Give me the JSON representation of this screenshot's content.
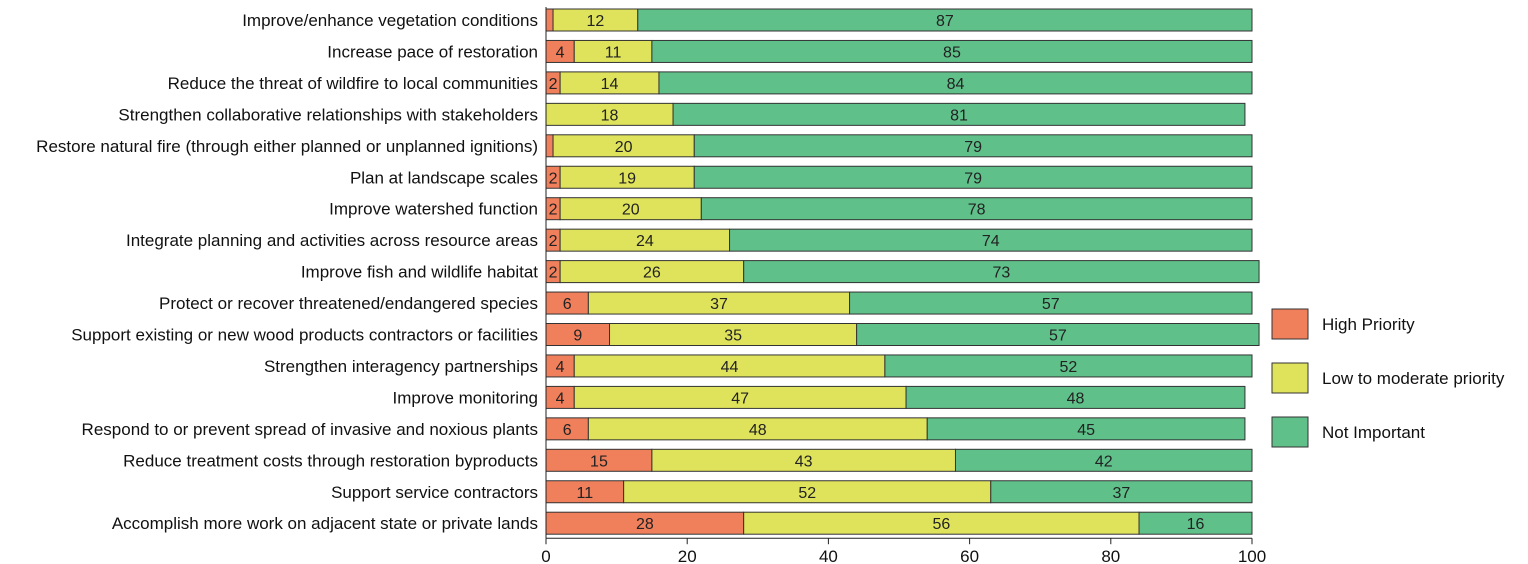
{
  "chart_data": {
    "type": "bar",
    "orientation": "horizontal",
    "stacked": true,
    "categories": [
      "Improve/enhance vegetation conditions",
      "Increase pace of restoration",
      "Reduce the threat of wildfire to local communities",
      "Strengthen collaborative relationships with stakeholders",
      "Restore natural fire (through either planned or unplanned ignitions)",
      "Plan at landscape scales",
      "Improve watershed function",
      "Integrate planning and activities across resource areas",
      "Improve fish and wildlife habitat",
      "Protect or recover threatened/endangered species",
      "Support existing or new wood products contractors or facilities",
      "Strengthen interagency partnerships",
      "Improve monitoring",
      "Respond to or prevent spread of invasive and noxious plants",
      "Reduce treatment costs through restoration byproducts",
      "Support service contractors",
      "Accomplish more work on adjacent state or private lands"
    ],
    "series": [
      {
        "name": "High Priority",
        "color": "#f07f5c",
        "values": [
          1,
          4,
          2,
          0,
          1,
          2,
          2,
          2,
          2,
          6,
          9,
          4,
          4,
          6,
          15,
          11,
          28
        ],
        "labels": [
          "",
          "4",
          "2",
          "",
          "",
          "2",
          "2",
          "2",
          "2",
          "6",
          "9",
          "4",
          "4",
          "6",
          "15",
          "11",
          "28"
        ]
      },
      {
        "name": "Low to moderate priority",
        "color": "#dfe35b",
        "values": [
          12,
          11,
          14,
          18,
          20,
          19,
          20,
          24,
          26,
          37,
          35,
          44,
          47,
          48,
          43,
          52,
          56
        ],
        "labels": [
          "12",
          "11",
          "14",
          "18",
          "20",
          "19",
          "20",
          "24",
          "26",
          "37",
          "35",
          "44",
          "47",
          "48",
          "43",
          "52",
          "56"
        ]
      },
      {
        "name": "Not Important",
        "color": "#5fc08a",
        "values": [
          87,
          85,
          84,
          81,
          79,
          79,
          78,
          74,
          73,
          57,
          57,
          52,
          48,
          45,
          42,
          37,
          16
        ],
        "labels": [
          "87",
          "85",
          "84",
          "81",
          "79",
          "79",
          "78",
          "74",
          "73",
          "57",
          "57",
          "52",
          "48",
          "45",
          "42",
          "37",
          "16"
        ]
      }
    ],
    "xlim": [
      0,
      100
    ],
    "xticks": [
      "0",
      "20",
      "40",
      "60",
      "80",
      "100"
    ],
    "title": "",
    "xlabel": "",
    "ylabel": "",
    "grid": false,
    "legend": "right"
  }
}
